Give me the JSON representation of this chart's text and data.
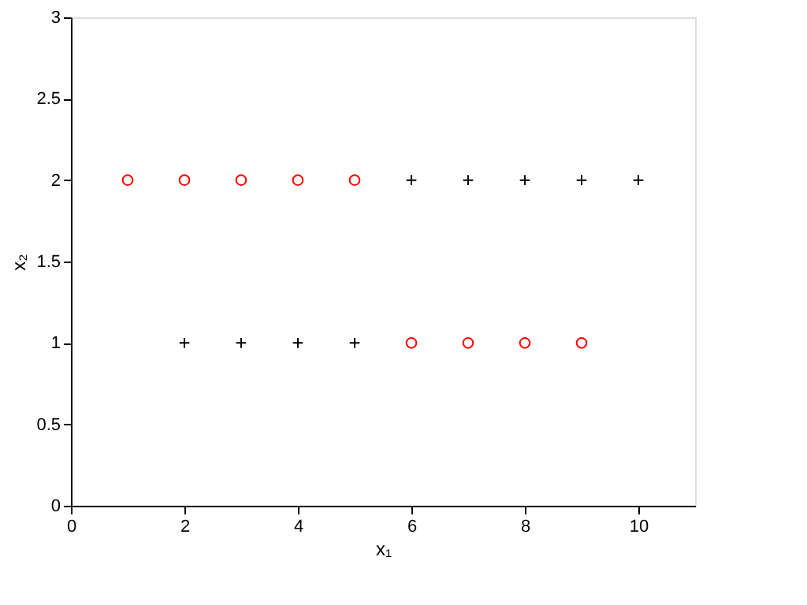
{
  "chart_data": {
    "type": "scatter",
    "xlabel": "x₁",
    "ylabel": "x₂",
    "xlim": [
      0,
      11
    ],
    "xticks": [
      0,
      2,
      4,
      6,
      8,
      10
    ],
    "ylim": [
      0,
      3
    ],
    "yticks": [
      0,
      0.5,
      1,
      1.5,
      2,
      2.5,
      3
    ],
    "grid": false,
    "series": [
      {
        "color": "#ff0000",
        "marker": "circle",
        "x": [
          1,
          2,
          3,
          4,
          5,
          6,
          7,
          8,
          9
        ],
        "values": [
          2,
          2,
          2,
          2,
          2,
          1,
          1,
          1,
          1
        ]
      },
      {
        "color": "#000000",
        "marker": "cross",
        "x": [
          2,
          3,
          4,
          5,
          6,
          7,
          8,
          9,
          10
        ],
        "values": [
          1,
          1,
          1,
          1,
          2,
          2,
          2,
          2,
          2
        ]
      }
    ]
  }
}
